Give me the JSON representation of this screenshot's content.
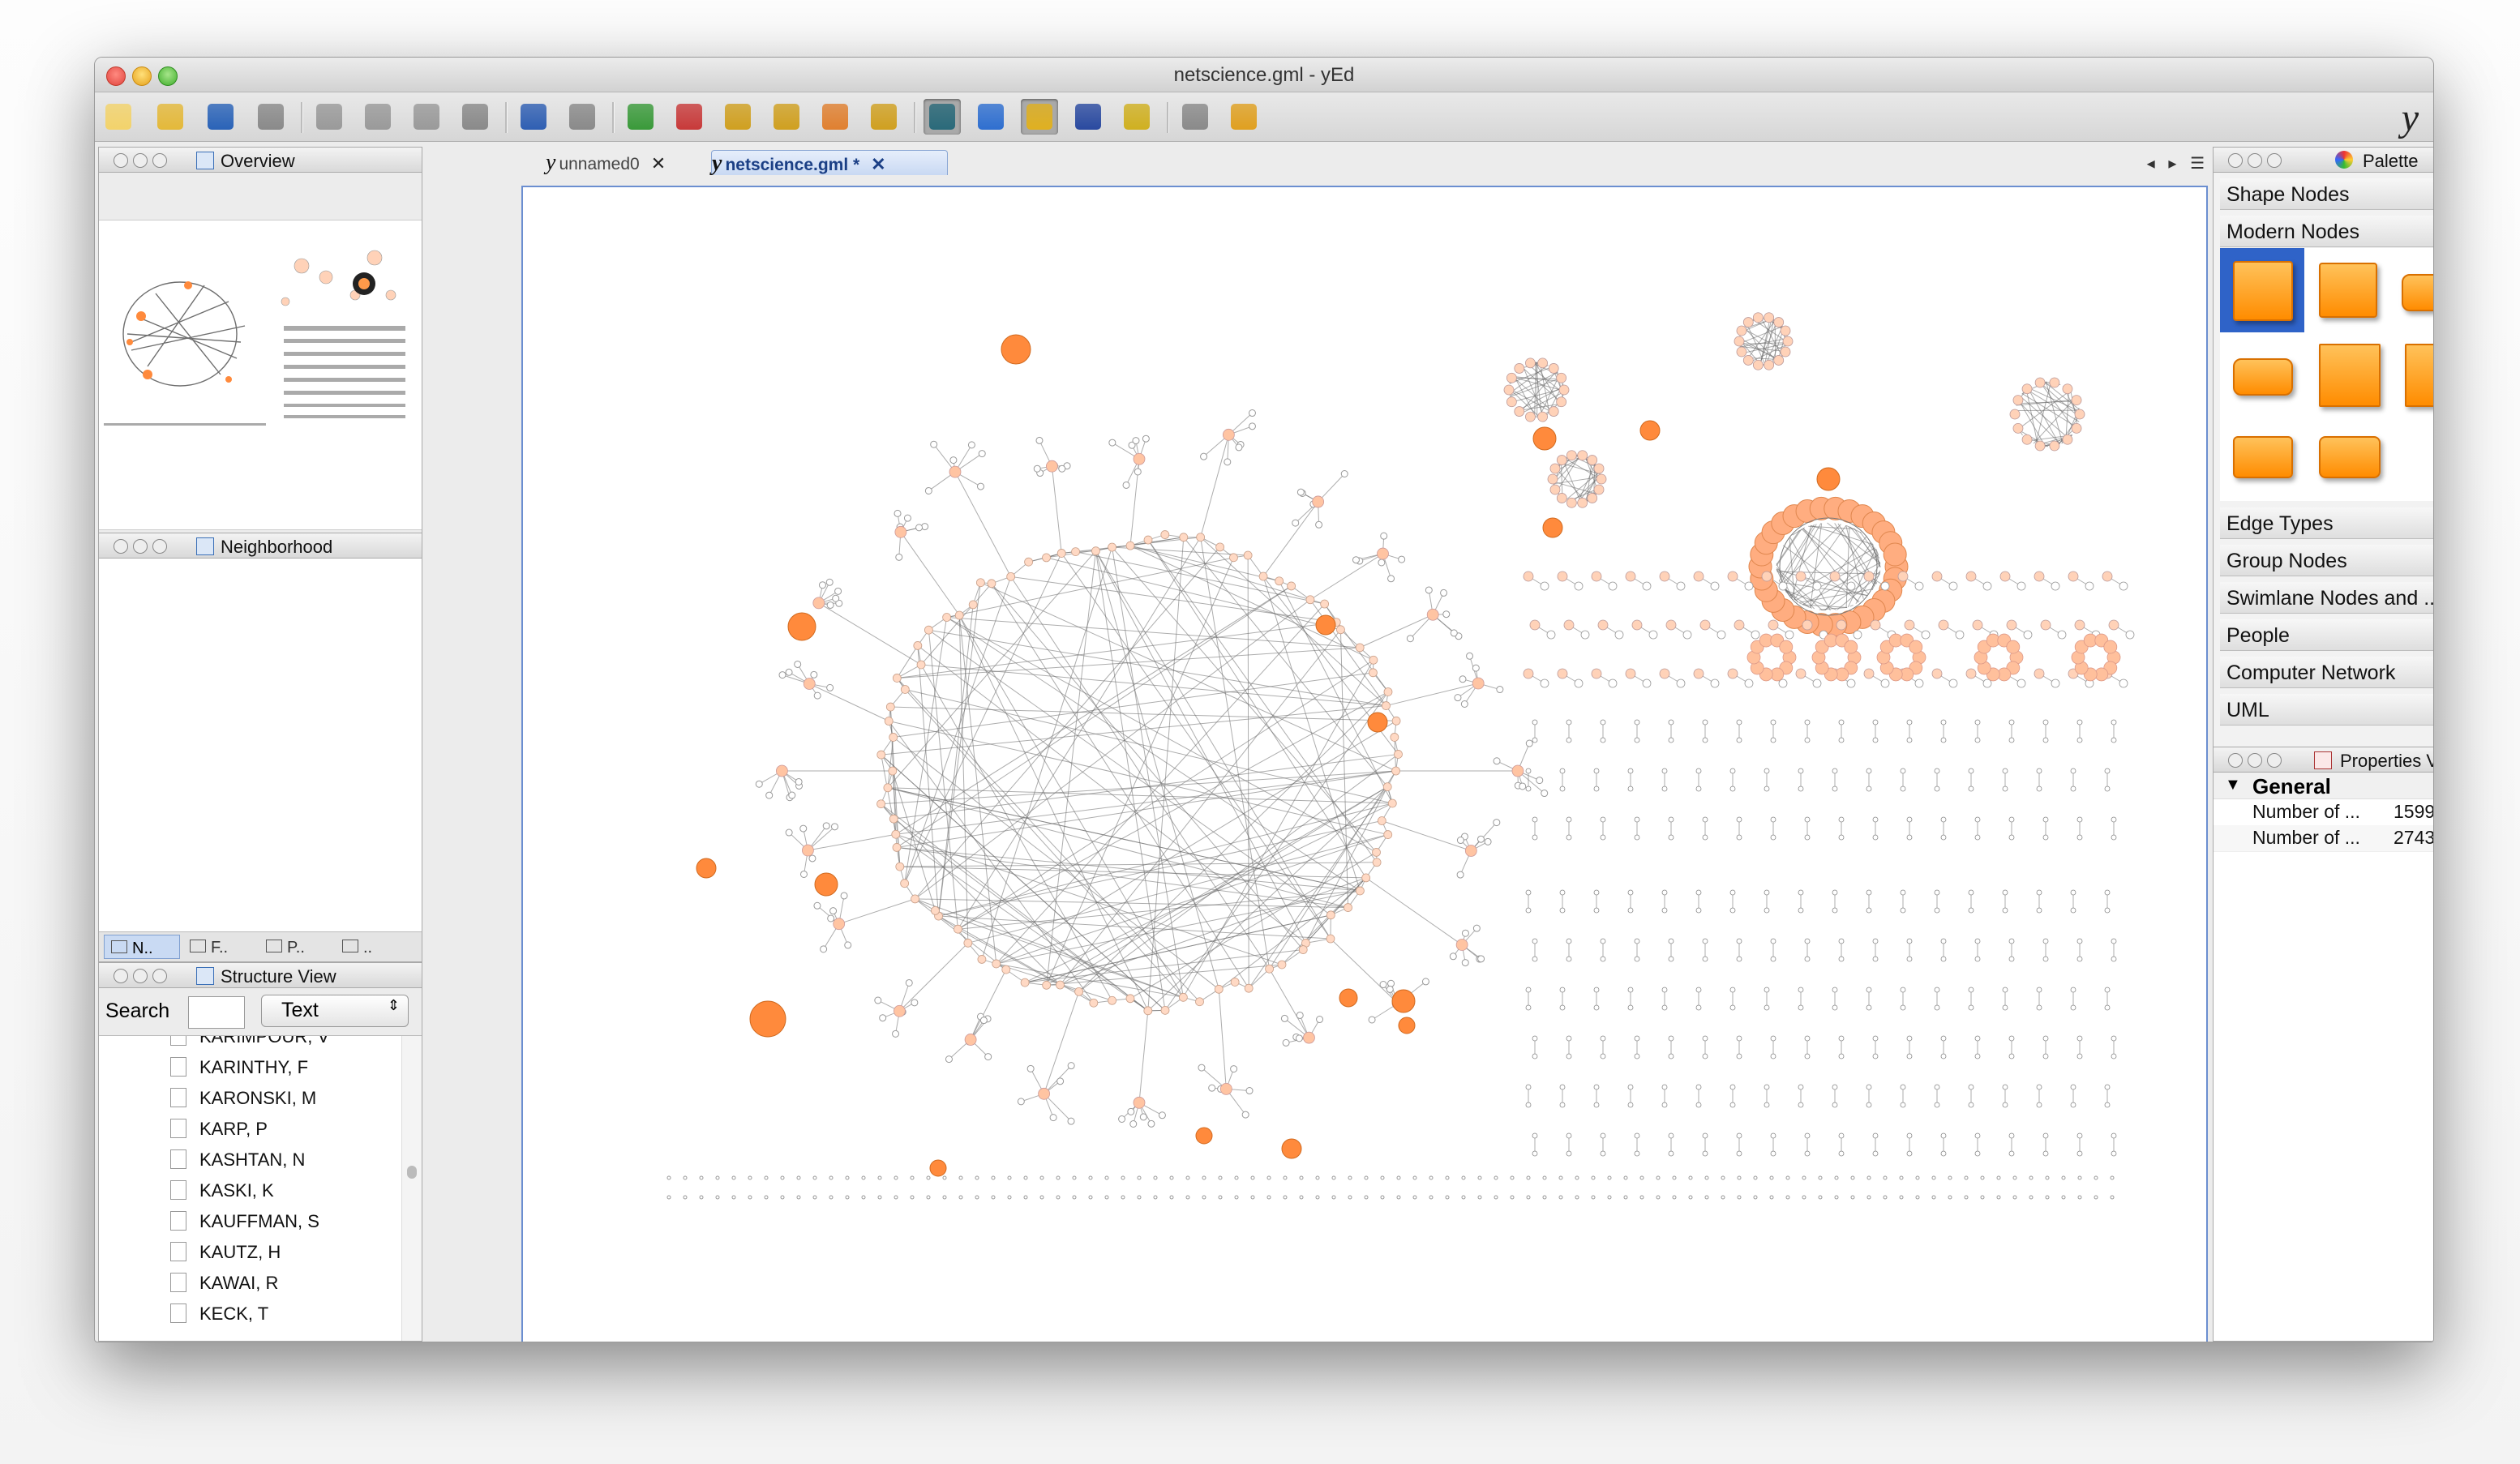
{
  "window": {
    "title": "netscience.gml - yEd",
    "logo": "y"
  },
  "toolbar": {
    "buttons": [
      {
        "icon": "new-document-icon",
        "color": "#f3d36b"
      },
      {
        "icon": "open-folder-icon",
        "color": "#e4b93a"
      },
      {
        "icon": "save-icon",
        "color": "#2a63b8"
      },
      {
        "icon": "export-icon",
        "color": "#8a8a8a"
      },
      {
        "icon": "cut-icon",
        "color": "#9a9a9a"
      },
      {
        "icon": "copy-icon",
        "color": "#9a9a9a"
      },
      {
        "icon": "paste-icon",
        "color": "#9a9a9a"
      },
      {
        "icon": "delete-icon",
        "color": "#8a8a8a"
      },
      {
        "icon": "undo-icon",
        "color": "#2f5fb3"
      },
      {
        "icon": "redo-icon",
        "color": "#8a8a8a"
      },
      {
        "icon": "zoom-in-icon",
        "color": "#3a9a3a"
      },
      {
        "icon": "zoom-out-icon",
        "color": "#c83a3a"
      },
      {
        "icon": "zoom-original-icon",
        "color": "#d0a020"
      },
      {
        "icon": "zoom-fit-icon",
        "color": "#d0a020"
      },
      {
        "icon": "zoom-area-icon",
        "color": "#e08030"
      },
      {
        "icon": "fit-content-icon",
        "color": "#d0a020"
      },
      {
        "icon": "edit-mode-icon",
        "color": "#2a6a7a"
      },
      {
        "icon": "navigation-mode-icon",
        "color": "#2f6fd0"
      },
      {
        "icon": "snap-lines-icon",
        "color": "#e0b020"
      },
      {
        "icon": "grid-icon",
        "color": "#2a4aa0"
      },
      {
        "icon": "orthogonal-edges-icon",
        "color": "#d0b020"
      },
      {
        "icon": "group-icon",
        "color": "#8a8a8a"
      },
      {
        "icon": "layout-wizard-icon",
        "color": "#e0a020"
      }
    ]
  },
  "overview": {
    "title": "Overview"
  },
  "neighborhood": {
    "title": "Neighborhood",
    "tabs": [
      "N..",
      "F..",
      "P..",
      ".."
    ]
  },
  "structure": {
    "title": "Structure View",
    "search_label": "Search",
    "search_value": "",
    "mode": "Text",
    "items": [
      "KARIMPOUR, V",
      "KARINTHY, F",
      "KARONSKI, M",
      "KARP, P",
      "KASHTAN, N",
      "KASKI, K",
      "KAUFFMAN, S",
      "KAUTZ, H",
      "KAWAI, R",
      "KECK, T"
    ]
  },
  "editor": {
    "tabs": [
      {
        "label": "unnamed0"
      },
      {
        "label": "netscience.gml *"
      }
    ]
  },
  "palette": {
    "title": "Palette",
    "sections": [
      "Shape Nodes",
      "Modern Nodes",
      "Edge Types",
      "Group Nodes",
      "Swimlane Nodes and ...",
      "People",
      "Computer Network",
      "UML"
    ],
    "accent": "#ff8c00"
  },
  "properties": {
    "title": "Properties View",
    "group": "General",
    "rows": [
      {
        "key": "Number of ...",
        "value": "1599"
      },
      {
        "key": "Number of ...",
        "value": "2743"
      }
    ]
  }
}
